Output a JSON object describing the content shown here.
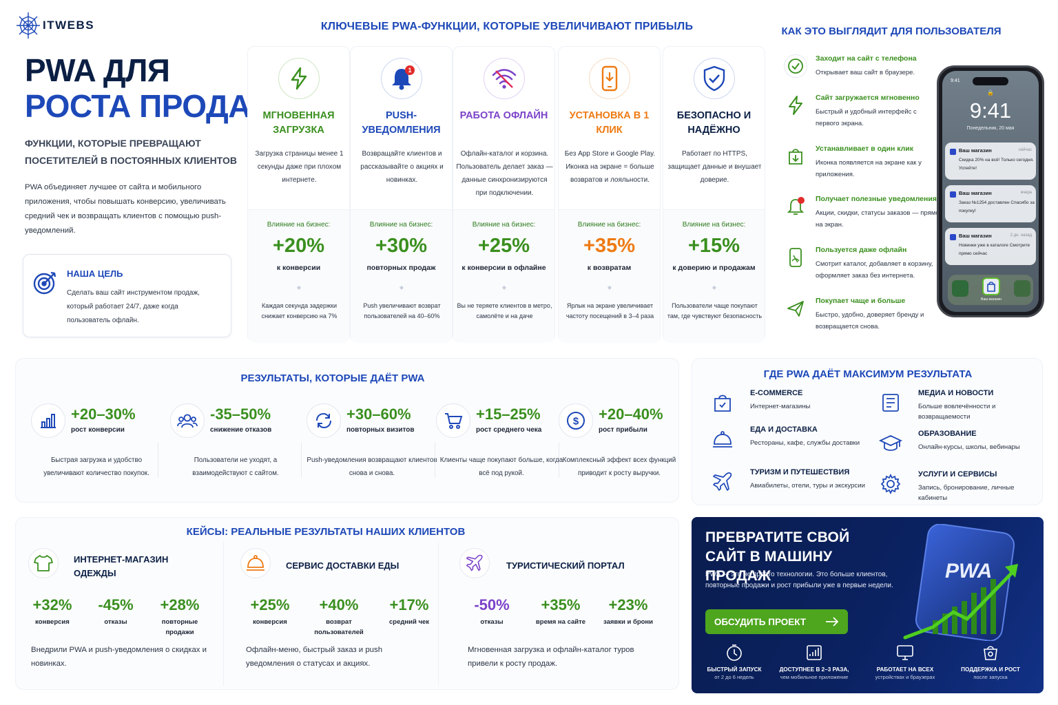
{
  "brand": {
    "name": "ITWEBS"
  },
  "hero": {
    "title_line1": "PWA ДЛЯ",
    "title_line2": "РОСТА ПРОДАЖ",
    "subtitle": "ФУНКЦИИ, КОТОРЫЕ ПРЕВРАЩАЮТ ПОСЕТИТЕЛЕЙ В ПОСТОЯННЫХ КЛИЕНТОВ",
    "description": "PWA объединяет лучшее от сайта и мобильного приложения, чтобы повышать конверсию, увеличивать средний чек и возвращать клиентов с помощью push-уведомлений.",
    "goal_title": "НАША ЦЕЛЬ",
    "goal_text": "Сделать ваш сайт инструментом продаж, который работает 24/7, даже когда пользователь офлайн."
  },
  "features": {
    "title": "КЛЮЧЕВЫЕ PWA-ФУНКЦИИ, КОТОРЫЕ УВЕЛИЧИВАЮТ ПРИБЫЛЬ",
    "impact_label": "Влияние на бизнес:",
    "items": [
      {
        "name": "МГНОВЕННАЯ ЗАГРУЗКА",
        "desc": "Загрузка страницы менее 1 секунды даже при плохом интернете.",
        "value": "+20%",
        "value_label": "к конверсии",
        "note": "Каждая секунда задержки снижает конверсию на 7%",
        "icon": "lightning-icon",
        "color": "#3a8f1e"
      },
      {
        "name": "PUSH-УВЕДОМЛЕНИЯ",
        "desc": "Возвращайте клиентов и рассказывайте о акциях и новинках.",
        "value": "+30%",
        "value_label": "повторных продаж",
        "note": "Push увеличивают возврат пользователей на 40–60%",
        "icon": "bell-icon",
        "badge": "1",
        "color": "#1d48b8"
      },
      {
        "name": "РАБОТА ОФЛАЙН",
        "desc": "Офлайн-каталог и корзина. Пользователь делает заказ — данные синхронизируются при подключении.",
        "value": "+25%",
        "value_label": "к конверсии в офлайне",
        "note": "Вы не теряете клиентов в метро, самолёте и на даче",
        "icon": "wifi-icon",
        "color": "#7b42c9"
      },
      {
        "name": "УСТАНОВКА В 1 КЛИК",
        "desc": "Без App Store и Google Play. Иконка на экране = больше возвратов и лояльности.",
        "value": "+35%",
        "value_label": "к возвратам",
        "note": "Ярлык на экране увеличивает частоту посещений в 3–4 раза",
        "icon": "smartphone-icon",
        "color": "#ee7a12"
      },
      {
        "name": "БЕЗОПАСНО И НАДЁЖНО",
        "desc": "Работает по HTTPS, защищает данные и внушает доверие.",
        "value": "+15%",
        "value_label": "к доверию и продажам",
        "note": "Пользователи чаще покупают там, где чувствуют безопасность",
        "icon": "shield-icon",
        "color": "#1d48b8"
      }
    ]
  },
  "user": {
    "title": "КАК ЭТО ВЫГЛЯДИТ ДЛЯ ПОЛЬЗОВАТЕЛЯ",
    "steps": [
      {
        "title": "Заходит на сайт с телефона",
        "desc": "Открывает ваш сайт в браузере.",
        "icon": "check-circle-icon"
      },
      {
        "title": "Сайт загружается мгновенно",
        "desc": "Быстрый и удобный интерфейс с первого экрана.",
        "icon": "lightning-icon"
      },
      {
        "title": "Устанавливает в один клик",
        "desc": "Иконка появляется на экране как у приложения.",
        "icon": "download-bag-icon"
      },
      {
        "title": "Получает полезные уведомления",
        "desc": "Акции, скидки, статусы заказов — прямо на экран.",
        "icon": "bell-icon"
      },
      {
        "title": "Пользуется даже офлайн",
        "desc": "Смотрит каталог, добавляет в корзину, оформляет заказ без интернета.",
        "icon": "offline-phone-icon"
      },
      {
        "title": "Покупает чаще и больше",
        "desc": "Быстро, удобно, доверяет бренду и возвращается снова.",
        "icon": "airplane-icon"
      }
    ],
    "phone": {
      "status_time": "9:41",
      "time": "9:41",
      "date": "Понедельник, 20 мая",
      "notifications": [
        {
          "app": "Ваш магазин",
          "when": "сейчас",
          "text": "Скидка 20% на всё! Только сегодня. Успейте!"
        },
        {
          "app": "Ваш магазин",
          "when": "вчера",
          "text": "Заказ №1254 доставлен Спасибо за покупку!"
        },
        {
          "app": "Ваш магазин",
          "when": "2 дн. назад",
          "text": "Новинки уже в каталоге Смотрите прямо сейчас"
        }
      ],
      "dock_label": "Ваш магазин"
    }
  },
  "results": {
    "title": "РЕЗУЛЬТАТЫ, КОТОРЫЕ ДАЁТ PWA",
    "items": [
      {
        "value": "+20–30%",
        "label": "рост конверсии",
        "desc": "Быстрая загрузка и удобство увеличивают количество покупок.",
        "icon": "bar-chart-icon"
      },
      {
        "value": "-35–50%",
        "label": "снижение отказов",
        "desc": "Пользователи не уходят, а взаимодействуют с сайтом.",
        "icon": "users-icon"
      },
      {
        "value": "+30–60%",
        "label": "повторных визитов",
        "desc": "Push-уведомления возвращают клиентов снова и снова.",
        "icon": "refresh-icon"
      },
      {
        "value": "+15–25%",
        "label": "рост среднего чека",
        "desc": "Клиенты чаще покупают больше, когда всё под рукой.",
        "icon": "cart-icon"
      },
      {
        "value": "+20–40%",
        "label": "рост прибыли",
        "desc": "Комплексный эффект всех функций приводит к росту выручки.",
        "icon": "dollar-icon"
      }
    ]
  },
  "where": {
    "title": "ГДЕ PWA ДАЁТ МАКСИМУМ РЕЗУЛЬТАТА",
    "items": [
      {
        "title": "E-COMMERCE",
        "desc": "Интернет-магазины",
        "icon": "shopping-bag-icon"
      },
      {
        "title": "МЕДИА И НОВОСТИ",
        "desc": "Больше вовлечённости и возвращаемости",
        "icon": "news-icon"
      },
      {
        "title": "ЕДА И ДОСТАВКА",
        "desc": "Рестораны, кафе, службы доставки",
        "icon": "cloche-icon"
      },
      {
        "title": "ОБРАЗОВАНИЕ",
        "desc": "Онлайн-курсы, школы, вебинары",
        "icon": "graduation-cap-icon"
      },
      {
        "title": "ТУРИЗМ И ПУТЕШЕСТВИЯ",
        "desc": "Авиабилеты, отели, туры и экскурсии",
        "icon": "airplane-icon"
      },
      {
        "title": "УСЛУГИ И СЕРВИСЫ",
        "desc": "Запись, бронирование, личные кабинеты",
        "icon": "gear-icon"
      }
    ]
  },
  "cases": {
    "title": "КЕЙСЫ: РЕАЛЬНЫЕ РЕЗУЛЬТАТЫ НАШИХ КЛИЕНТОВ",
    "items": [
      {
        "name": "ИНТЕРНЕТ-МАГАЗИН ОДЕЖДЫ",
        "icon": "tshirt-icon",
        "metrics": [
          {
            "value": "+32%",
            "label": "конверсия"
          },
          {
            "value": "-45%",
            "label": "отказы"
          },
          {
            "value": "+28%",
            "label": "повторные продажи"
          }
        ],
        "desc": "Внедрили PWA и push-уведомления о скидках и новинках."
      },
      {
        "name": "СЕРВИС ДОСТАВКИ ЕДЫ",
        "icon": "cloche-icon",
        "metrics": [
          {
            "value": "+25%",
            "label": "конверсия"
          },
          {
            "value": "+40%",
            "label": "возврат пользователей"
          },
          {
            "value": "+17%",
            "label": "средний чек"
          }
        ],
        "desc": "Офлайн-меню, быстрый заказ и push уведомления о статусах и акциях."
      },
      {
        "name": "ТУРИСТИЧЕСКИЙ ПОРТАЛ",
        "icon": "airplane-icon",
        "metrics": [
          {
            "value": "-50%",
            "label": "отказы"
          },
          {
            "value": "+35%",
            "label": "время на сайте"
          },
          {
            "value": "+23%",
            "label": "заявки и брони"
          }
        ],
        "desc": "Мгновенная загрузка и офлайн-каталог туров привели к росту продаж."
      }
    ]
  },
  "cta": {
    "title": "ПРЕВРАТИТЕ СВОЙ САЙТ В МАШИНУ ПРОДАЖ",
    "desc": "PWA — это не просто технологии. Это больше клиентов, повторные продажи и рост прибыли уже в первые недели.",
    "button": "ОБСУДИТЬ ПРОЕКТ",
    "phone_logo": "PWA",
    "features": [
      {
        "title": "БЫСТРЫЙ ЗАПУСК",
        "desc": "от 2 до 6 недель",
        "icon": "stopwatch-icon"
      },
      {
        "title": "ДОСТУПНЕЕ В 2–3 РАЗА,",
        "desc": "чем мобильное приложение",
        "icon": "price-chart-icon"
      },
      {
        "title": "РАБОТАЕТ НА ВСЕХ",
        "desc": "устройствах и браузерах",
        "icon": "monitor-icon"
      },
      {
        "title": "ПОДДЕРЖКА И РОСТ",
        "desc": "после запуска",
        "icon": "support-icon"
      }
    ]
  }
}
